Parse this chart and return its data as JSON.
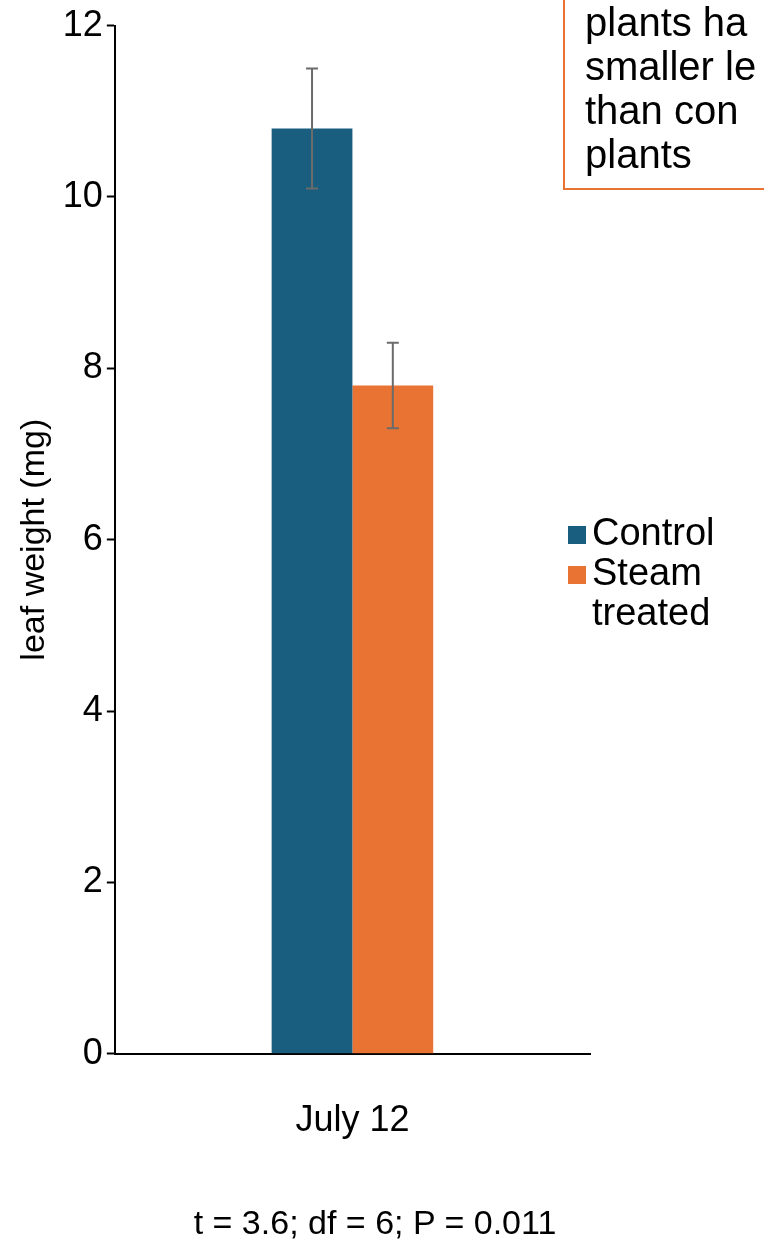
{
  "chart_data": {
    "type": "bar",
    "ylabel": "leaf weight (mg)",
    "categories": [
      "July 12"
    ],
    "series": [
      {
        "name": "Control",
        "color": "#195e7f",
        "values": [
          10.8
        ],
        "errors": [
          0.7
        ]
      },
      {
        "name": "Steam treated",
        "color": "#e87333",
        "values": [
          7.8
        ],
        "errors": [
          0.5
        ]
      }
    ],
    "ylim": [
      0,
      12
    ],
    "yticks": [
      0,
      2,
      4,
      6,
      8,
      10,
      12
    ],
    "grid": false,
    "legend": "right",
    "annotations": [
      "plants ha\nsmaller le\nthan con\nplants",
      "t = 3.6; df = 6; P = 0.011"
    ]
  }
}
